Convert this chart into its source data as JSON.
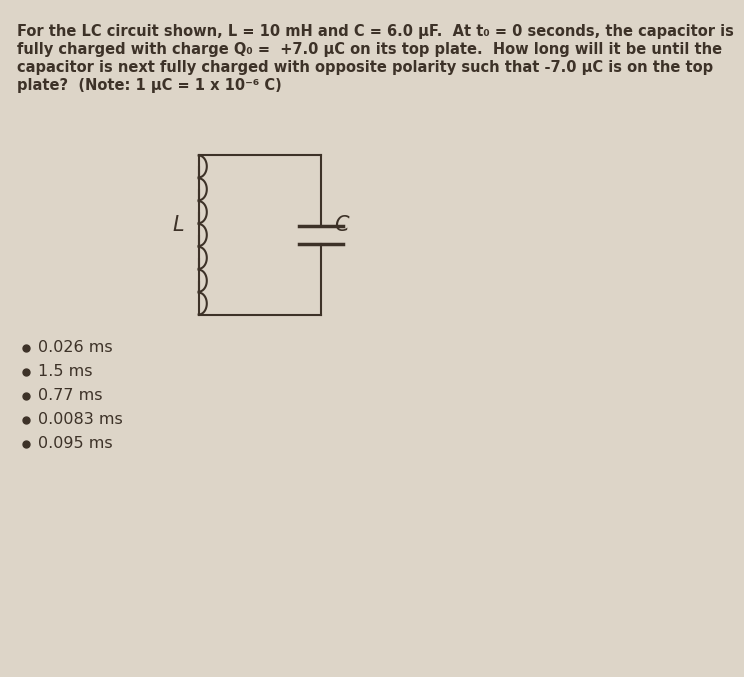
{
  "background_color": "#ddd5c8",
  "title_lines": [
    "For the LC circuit shown, L = 10 mH and C = 6.0 μF.  At t₀ = 0 seconds, the capacitor is",
    "fully charged with charge Q₀ =  +7.0 μC on its top plate.  How long will it be until the",
    "capacitor is next fully charged with opposite polarity such that -7.0 μC is on the top",
    "plate?  (Note: 1 μC = 1 x 10⁻⁶ C)"
  ],
  "options": [
    "0.026 ms",
    "1.5 ms",
    "0.77 ms",
    "0.0083 ms",
    "0.095 ms"
  ],
  "line_color": "#3d3228",
  "text_color": "#3d3228",
  "title_fontsize": 10.5,
  "option_fontsize": 11.5
}
